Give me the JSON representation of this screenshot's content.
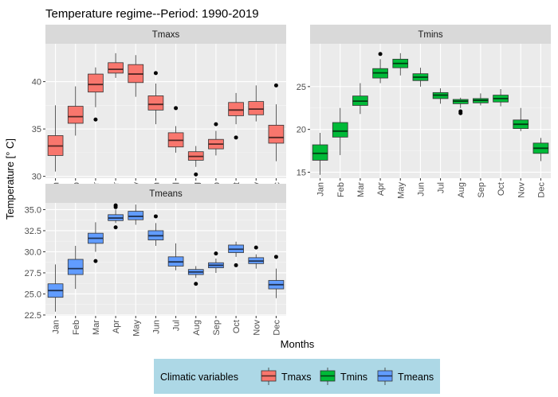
{
  "chart_data": {
    "type": "boxplot",
    "title": "Temperature regime--Period: 1990-2019",
    "xlabel": "Months",
    "ylabel": "Temperature [° C]",
    "categories": [
      "Jan",
      "Feb",
      "Mar",
      "Apr",
      "May",
      "Jun",
      "Jul",
      "Aug",
      "Sep",
      "Oct",
      "Nov",
      "Dec"
    ],
    "legend": {
      "title": "Climatic variables",
      "position": "bottom",
      "entries": [
        {
          "name": "Tmaxs",
          "color": "#F8766D"
        },
        {
          "name": "Tmins",
          "color": "#00BA38"
        },
        {
          "name": "Tmeans",
          "color": "#619CFF"
        }
      ]
    },
    "panels": [
      {
        "name": "Tmaxs",
        "color": "#F8766D",
        "ylim": [
          29.8,
          44.0
        ],
        "yticks": [
          30,
          35,
          40
        ],
        "ytick_labels": [
          "30",
          "35",
          "40"
        ],
        "boxes": [
          {
            "min": 30.5,
            "q1": 32.2,
            "median": 33.2,
            "q3": 34.3,
            "max": 37.5,
            "outliers": []
          },
          {
            "min": 34.3,
            "q1": 35.6,
            "median": 36.3,
            "q3": 37.4,
            "max": 39.5,
            "outliers": []
          },
          {
            "min": 37.3,
            "q1": 38.9,
            "median": 39.7,
            "q3": 40.8,
            "max": 41.5,
            "outliers": [
              36.0
            ]
          },
          {
            "min": 40.4,
            "q1": 40.9,
            "median": 41.3,
            "q3": 42.0,
            "max": 43.0,
            "outliers": []
          },
          {
            "min": 38.4,
            "q1": 39.9,
            "median": 40.8,
            "q3": 41.8,
            "max": 42.8,
            "outliers": []
          },
          {
            "min": 35.5,
            "q1": 37.0,
            "median": 37.6,
            "q3": 38.5,
            "max": 39.8,
            "outliers": [
              40.9
            ]
          },
          {
            "min": 32.5,
            "q1": 33.1,
            "median": 33.8,
            "q3": 34.6,
            "max": 35.3,
            "outliers": [
              37.2
            ]
          },
          {
            "min": 31.0,
            "q1": 31.7,
            "median": 32.1,
            "q3": 32.6,
            "max": 33.2,
            "outliers": [
              30.2
            ]
          },
          {
            "min": 32.2,
            "q1": 32.9,
            "median": 33.4,
            "q3": 33.9,
            "max": 34.8,
            "outliers": [
              35.5
            ]
          },
          {
            "min": 35.5,
            "q1": 36.4,
            "median": 37.0,
            "q3": 37.8,
            "max": 38.8,
            "outliers": [
              34.1
            ]
          },
          {
            "min": 35.8,
            "q1": 36.5,
            "median": 37.1,
            "q3": 37.9,
            "max": 39.6,
            "outliers": []
          },
          {
            "min": 31.6,
            "q1": 33.5,
            "median": 34.1,
            "q3": 35.4,
            "max": 37.6,
            "outliers": [
              39.6
            ]
          }
        ]
      },
      {
        "name": "Tmins",
        "color": "#00BA38",
        "ylim": [
          14.3,
          30.0
        ],
        "yticks": [
          15,
          20,
          25
        ],
        "ytick_labels": [
          "15",
          "20",
          "25"
        ],
        "boxes": [
          {
            "min": 14.7,
            "q1": 16.4,
            "median": 17.2,
            "q3": 18.2,
            "max": 19.6,
            "outliers": []
          },
          {
            "min": 17.0,
            "q1": 19.1,
            "median": 19.8,
            "q3": 20.8,
            "max": 22.5,
            "outliers": []
          },
          {
            "min": 21.8,
            "q1": 22.8,
            "median": 23.3,
            "q3": 23.9,
            "max": 25.4,
            "outliers": []
          },
          {
            "min": 25.4,
            "q1": 26.0,
            "median": 26.6,
            "q3": 27.1,
            "max": 28.2,
            "outliers": [
              28.8
            ]
          },
          {
            "min": 26.3,
            "q1": 27.2,
            "median": 27.7,
            "q3": 28.2,
            "max": 28.9,
            "outliers": []
          },
          {
            "min": 25.0,
            "q1": 25.7,
            "median": 26.1,
            "q3": 26.5,
            "max": 27.2,
            "outliers": []
          },
          {
            "min": 23.0,
            "q1": 23.6,
            "median": 24.0,
            "q3": 24.3,
            "max": 24.8,
            "outliers": []
          },
          {
            "min": 22.5,
            "q1": 23.0,
            "median": 23.3,
            "q3": 23.5,
            "max": 23.7,
            "outliers": [
              22.1,
              21.9
            ]
          },
          {
            "min": 22.8,
            "q1": 23.1,
            "median": 23.4,
            "q3": 23.6,
            "max": 24.2,
            "outliers": []
          },
          {
            "min": 22.7,
            "q1": 23.2,
            "median": 23.6,
            "q3": 24.0,
            "max": 24.7,
            "outliers": []
          },
          {
            "min": 19.8,
            "q1": 20.1,
            "median": 20.6,
            "q3": 21.1,
            "max": 22.5,
            "outliers": []
          },
          {
            "min": 16.3,
            "q1": 17.2,
            "median": 17.8,
            "q3": 18.4,
            "max": 19.0,
            "outliers": []
          }
        ]
      },
      {
        "name": "Tmeans",
        "color": "#619CFF",
        "ylim": [
          22.4,
          35.8
        ],
        "yticks": [
          22.5,
          25.0,
          27.5,
          30.0,
          32.5,
          35.0
        ],
        "ytick_labels": [
          "22.5",
          "25.0",
          "27.5",
          "30.0",
          "32.5",
          "35.0"
        ],
        "boxes": [
          {
            "min": 22.9,
            "q1": 24.6,
            "median": 25.4,
            "q3": 26.2,
            "max": 28.5,
            "outliers": []
          },
          {
            "min": 25.6,
            "q1": 27.3,
            "median": 28.0,
            "q3": 29.1,
            "max": 30.7,
            "outliers": []
          },
          {
            "min": 30.0,
            "q1": 31.0,
            "median": 31.6,
            "q3": 32.2,
            "max": 33.5,
            "outliers": [
              28.9
            ]
          },
          {
            "min": 33.4,
            "q1": 33.7,
            "median": 34.0,
            "q3": 34.4,
            "max": 35.0,
            "outliers": [
              35.3,
              35.5,
              32.9
            ]
          },
          {
            "min": 33.2,
            "q1": 33.8,
            "median": 34.2,
            "q3": 34.8,
            "max": 35.6,
            "outliers": []
          },
          {
            "min": 30.7,
            "q1": 31.4,
            "median": 31.9,
            "q3": 32.5,
            "max": 33.4,
            "outliers": [
              34.2
            ]
          },
          {
            "min": 27.8,
            "q1": 28.3,
            "median": 28.8,
            "q3": 29.4,
            "max": 31.0,
            "outliers": []
          },
          {
            "min": 26.9,
            "q1": 27.3,
            "median": 27.6,
            "q3": 27.9,
            "max": 28.3,
            "outliers": [
              26.2
            ]
          },
          {
            "min": 27.5,
            "q1": 28.1,
            "median": 28.4,
            "q3": 28.7,
            "max": 29.2,
            "outliers": [
              29.8
            ]
          },
          {
            "min": 29.4,
            "q1": 29.9,
            "median": 30.3,
            "q3": 30.8,
            "max": 31.2,
            "outliers": [
              28.4
            ]
          },
          {
            "min": 28.0,
            "q1": 28.6,
            "median": 28.9,
            "q3": 29.3,
            "max": 29.7,
            "outliers": [
              30.5
            ]
          },
          {
            "min": 24.5,
            "q1": 25.6,
            "median": 26.1,
            "q3": 26.6,
            "max": 28.0,
            "outliers": [
              29.4
            ]
          }
        ]
      }
    ]
  }
}
